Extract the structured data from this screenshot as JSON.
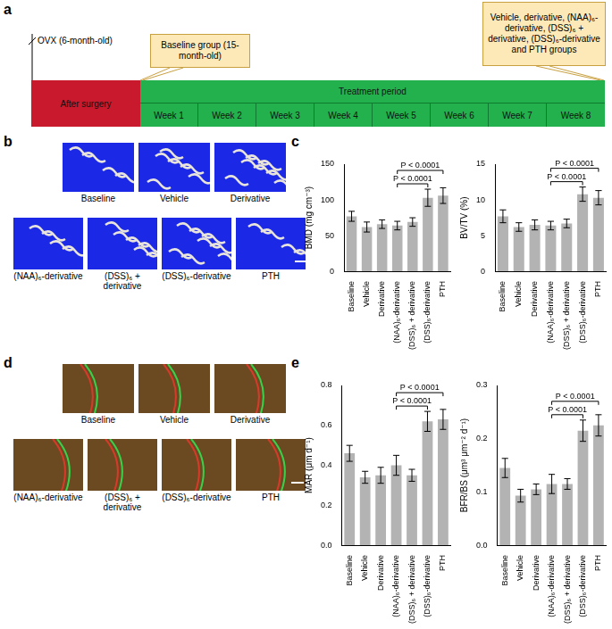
{
  "panel_labels": [
    "a",
    "b",
    "c",
    "d",
    "e"
  ],
  "timeline": {
    "surgery": "OVX (6-month-old)",
    "baseline_callout": "Baseline group (15-month-old)",
    "end_callout": "Vehicle, derivative, (NAA)₆-derivative, (DSS)₆ + derivative, (DSS)₆-derivative and PTH groups",
    "after_surgery": "After surgery",
    "treatment": "Treatment period",
    "weeks": [
      "Week 1",
      "Week 2",
      "Week 3",
      "Week 4",
      "Week 5",
      "Week 6",
      "Week 7",
      "Week 8"
    ]
  },
  "images_b": {
    "top": [
      "Baseline",
      "Vehicle",
      "Derivative"
    ],
    "bottom": [
      "(NAA)₆-derivative",
      "(DSS)₆ + derivative",
      "(DSS)₆-derivative",
      "PTH"
    ]
  },
  "images_d": {
    "top": [
      "Baseline",
      "Vehicle",
      "Derivative"
    ],
    "bottom": [
      "(NAA)₆-derivative",
      "(DSS)₆ + derivative",
      "(DSS)₆-derivative",
      "PTH"
    ]
  },
  "chart_data": [
    {
      "type": "bar",
      "y_label": "BMD (mg cm⁻³)",
      "categories": [
        "Baseline",
        "Vehicle",
        "Derivative",
        "(NAA)₆-derivative",
        "(DSS)₆ + derivative",
        "(DSS)₆-derivative",
        "PTH"
      ],
      "values": [
        77,
        62,
        66,
        64,
        69,
        103,
        106
      ],
      "errors": [
        7,
        7,
        6,
        6,
        6,
        12,
        11
      ],
      "color": "#b3b3b3",
      "ylim": [
        0,
        150
      ],
      "yticks": [
        0,
        50,
        100,
        150
      ],
      "grid": false,
      "annotations": [
        {
          "text": "P < 0.0001",
          "from": "(NAA)₆-derivative",
          "to": "(DSS)₆-derivative"
        },
        {
          "text": "P < 0.0001",
          "from": "(NAA)₆-derivative",
          "to": "PTH"
        }
      ]
    },
    {
      "type": "bar",
      "y_label": "BV/TV (%)",
      "categories": [
        "Baseline",
        "Vehicle",
        "Derivative",
        "(NAA)₆-derivative",
        "(DSS)₆ + derivative",
        "(DSS)₆-derivative",
        "PTH"
      ],
      "values": [
        7.7,
        6.2,
        6.5,
        6.4,
        6.7,
        10.8,
        10.3
      ],
      "errors": [
        0.9,
        0.6,
        0.7,
        0.6,
        0.6,
        1.0,
        1.0
      ],
      "color": "#b3b3b3",
      "ylim": [
        0,
        15
      ],
      "yticks": [
        0,
        5,
        10,
        15
      ],
      "grid": false,
      "annotations": [
        {
          "text": "P < 0.0001",
          "from": "(NAA)₆-derivative",
          "to": "(DSS)₆-derivative"
        },
        {
          "text": "P < 0.0001",
          "from": "(NAA)₆-derivative",
          "to": "PTH"
        }
      ]
    },
    {
      "type": "bar",
      "y_label": "MAR (μm d⁻¹)",
      "categories": [
        "Baseline",
        "Vehicle",
        "Derivative",
        "(NAA)₆-derivative",
        "(DSS)₆ + derivative",
        "(DSS)₆-derivative",
        "PTH"
      ],
      "values": [
        0.46,
        0.34,
        0.35,
        0.4,
        0.35,
        0.62,
        0.63
      ],
      "errors": [
        0.04,
        0.03,
        0.04,
        0.05,
        0.03,
        0.05,
        0.05
      ],
      "color": "#b3b3b3",
      "ylim": [
        0,
        0.8
      ],
      "yticks": [
        {
          "value": 0,
          "label": "0.0"
        },
        0.2,
        0.4,
        0.6,
        0.8
      ],
      "grid": false,
      "annotations": [
        {
          "text": "P < 0.0001",
          "from": "(NAA)₆-derivative",
          "to": "(DSS)₆-derivative"
        },
        {
          "text": "P < 0.0001",
          "from": "(NAA)₆-derivative",
          "to": "PTH"
        }
      ]
    },
    {
      "type": "bar",
      "y_label": "BFR/BS (μm³ μm⁻² d⁻¹)",
      "categories": [
        "Baseline",
        "Vehicle",
        "Derivative",
        "(NAA)₆-derivative",
        "(DSS)₆ + derivative",
        "(DSS)₆-derivative",
        "PTH"
      ],
      "values": [
        0.145,
        0.093,
        0.105,
        0.115,
        0.115,
        0.215,
        0.225
      ],
      "errors": [
        0.018,
        0.012,
        0.01,
        0.018,
        0.01,
        0.02,
        0.02
      ],
      "color": "#b3b3b3",
      "ylim": [
        0,
        0.3
      ],
      "yticks": [
        {
          "value": 0,
          "label": "0.0"
        },
        0.1,
        0.2,
        0.3
      ],
      "grid": false,
      "annotations": [
        {
          "text": "P < 0.0001",
          "from": "(NAA)₆-derivative",
          "to": "(DSS)₆-derivative"
        },
        {
          "text": "P < 0.0001",
          "from": "(NAA)₆-derivative",
          "to": "PTH"
        }
      ]
    }
  ]
}
